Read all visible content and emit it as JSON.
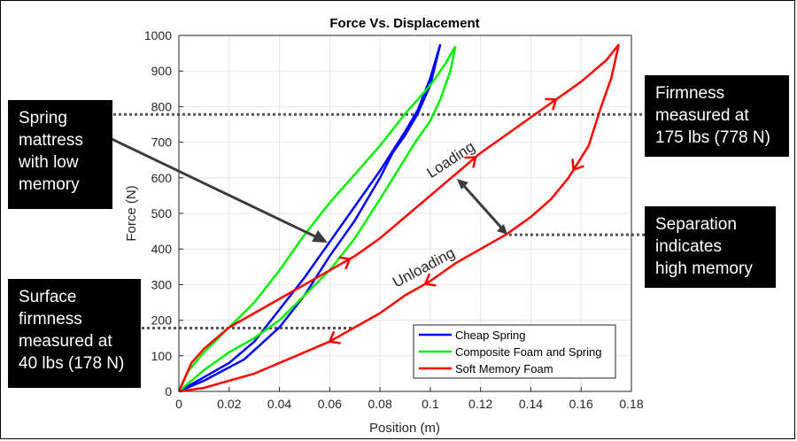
{
  "chart_data": {
    "type": "line",
    "title": "Force Vs. Displacement",
    "xlabel": "Position (m)",
    "ylabel": "Force (N)",
    "xlim": [
      0,
      0.18
    ],
    "ylim": [
      0,
      1000
    ],
    "xticks": [
      "0",
      "0.02",
      "0.04",
      "0.06",
      "0.08",
      "0.1",
      "0.12",
      "0.14",
      "0.16",
      "0.18"
    ],
    "yticks": [
      "0",
      "100",
      "200",
      "300",
      "400",
      "500",
      "600",
      "700",
      "800",
      "900",
      "1000"
    ],
    "grid": true,
    "legend_position": "bottom-right",
    "series": [
      {
        "name": "Cheap Spring",
        "color": "#0000ff",
        "loading": [
          [
            0,
            0
          ],
          [
            0.01,
            40
          ],
          [
            0.02,
            80
          ],
          [
            0.03,
            140
          ],
          [
            0.04,
            230
          ],
          [
            0.05,
            320
          ],
          [
            0.06,
            420
          ],
          [
            0.07,
            520
          ],
          [
            0.08,
            620
          ],
          [
            0.09,
            730
          ],
          [
            0.095,
            790
          ],
          [
            0.1,
            880
          ],
          [
            0.104,
            975
          ]
        ],
        "unloading": [
          [
            0.104,
            975
          ],
          [
            0.1,
            860
          ],
          [
            0.095,
            780
          ],
          [
            0.09,
            720
          ],
          [
            0.085,
            670
          ],
          [
            0.08,
            600
          ],
          [
            0.07,
            480
          ],
          [
            0.06,
            380
          ],
          [
            0.05,
            270
          ],
          [
            0.04,
            180
          ],
          [
            0.026,
            90
          ],
          [
            0.01,
            30
          ],
          [
            0,
            0
          ]
        ]
      },
      {
        "name": "Composite Foam and Spring",
        "color": "#00ee00",
        "loading": [
          [
            0,
            0
          ],
          [
            0.004,
            60
          ],
          [
            0.01,
            110
          ],
          [
            0.02,
            180
          ],
          [
            0.03,
            250
          ],
          [
            0.04,
            340
          ],
          [
            0.05,
            440
          ],
          [
            0.06,
            530
          ],
          [
            0.07,
            610
          ],
          [
            0.08,
            690
          ],
          [
            0.09,
            780
          ],
          [
            0.1,
            860
          ],
          [
            0.106,
            920
          ],
          [
            0.11,
            970
          ]
        ],
        "unloading": [
          [
            0.11,
            970
          ],
          [
            0.108,
            900
          ],
          [
            0.104,
            820
          ],
          [
            0.1,
            760
          ],
          [
            0.094,
            700
          ],
          [
            0.087,
            620
          ],
          [
            0.08,
            540
          ],
          [
            0.07,
            430
          ],
          [
            0.06,
            340
          ],
          [
            0.05,
            270
          ],
          [
            0.04,
            200
          ],
          [
            0.03,
            150
          ],
          [
            0.02,
            110
          ],
          [
            0.01,
            60
          ],
          [
            0,
            0
          ]
        ]
      },
      {
        "name": "Soft Memory Foam",
        "color": "#ff0000",
        "loading": [
          [
            0,
            0
          ],
          [
            0.005,
            80
          ],
          [
            0.01,
            120
          ],
          [
            0.02,
            180
          ],
          [
            0.03,
            220
          ],
          [
            0.04,
            260
          ],
          [
            0.05,
            300
          ],
          [
            0.06,
            340
          ],
          [
            0.07,
            380
          ],
          [
            0.08,
            430
          ],
          [
            0.09,
            490
          ],
          [
            0.1,
            550
          ],
          [
            0.11,
            610
          ],
          [
            0.12,
            670
          ],
          [
            0.13,
            720
          ],
          [
            0.14,
            770
          ],
          [
            0.15,
            820
          ],
          [
            0.16,
            870
          ],
          [
            0.17,
            930
          ],
          [
            0.175,
            975
          ]
        ],
        "unloading": [
          [
            0.175,
            975
          ],
          [
            0.172,
            880
          ],
          [
            0.168,
            800
          ],
          [
            0.163,
            690
          ],
          [
            0.155,
            600
          ],
          [
            0.148,
            540
          ],
          [
            0.14,
            490
          ],
          [
            0.13,
            440
          ],
          [
            0.12,
            400
          ],
          [
            0.11,
            360
          ],
          [
            0.1,
            310
          ],
          [
            0.09,
            270
          ],
          [
            0.08,
            220
          ],
          [
            0.07,
            180
          ],
          [
            0.06,
            140
          ],
          [
            0.05,
            110
          ],
          [
            0.04,
            80
          ],
          [
            0.03,
            50
          ],
          [
            0.02,
            30
          ],
          [
            0.01,
            10
          ],
          [
            0,
            0
          ]
        ]
      }
    ],
    "reference_lines": [
      {
        "y": 778,
        "style": "dotted"
      },
      {
        "y": 178,
        "style": "dotted"
      }
    ],
    "annotations": {
      "loading": "Loading",
      "unloading": "Unloading"
    }
  },
  "callouts": {
    "spring": [
      "Spring",
      "mattress",
      "with low",
      "memory"
    ],
    "firmness": [
      "Firmness",
      "measured at",
      "175 lbs (778 N)"
    ],
    "separation": [
      "Separation",
      "indicates",
      "high memory"
    ],
    "surface": [
      "Surface",
      "firmness",
      "measured at",
      "40 lbs (178 N)"
    ]
  }
}
